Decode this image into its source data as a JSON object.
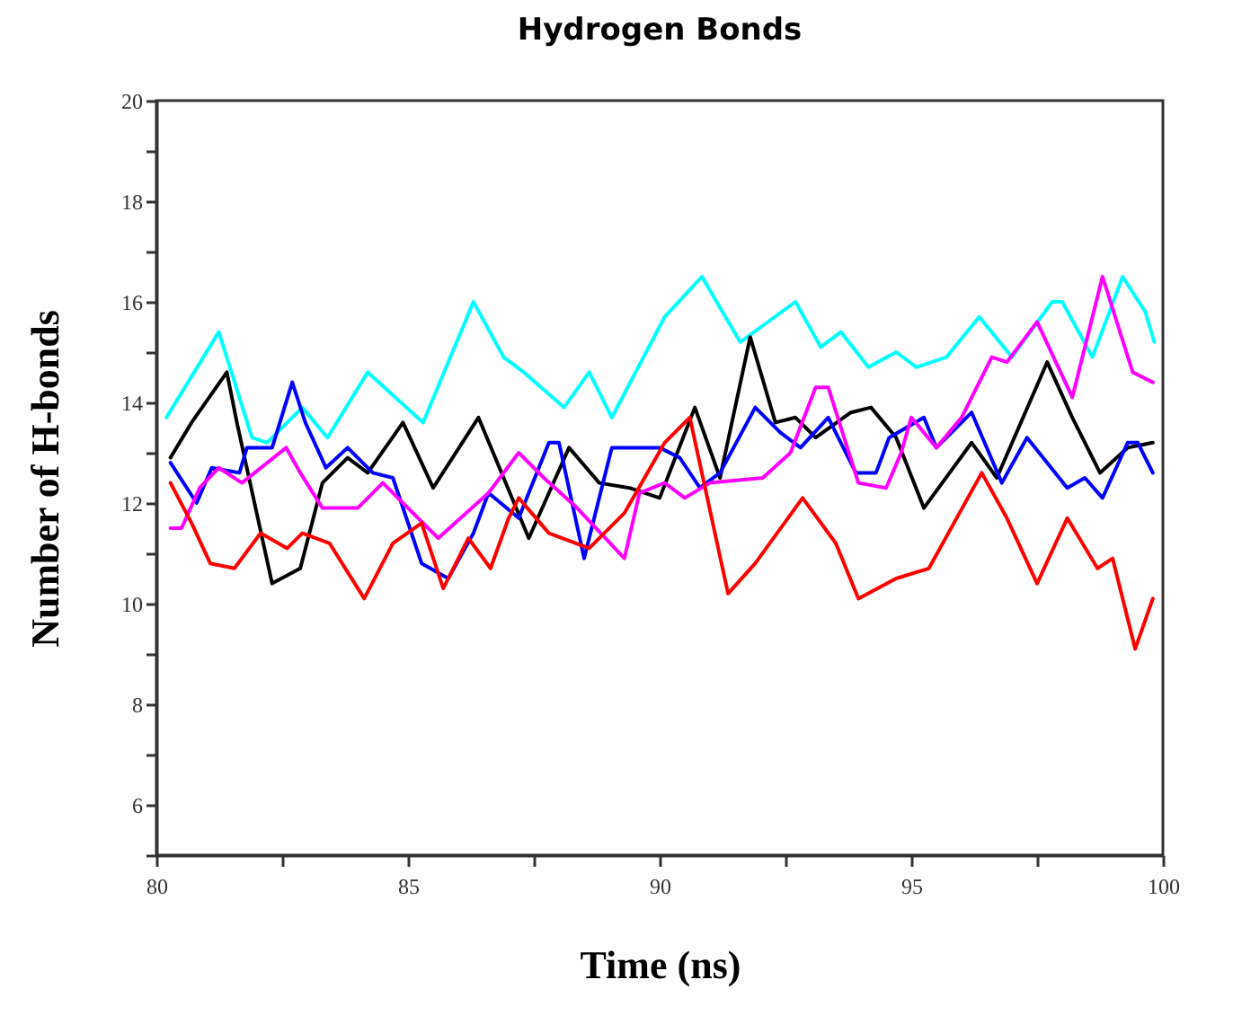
{
  "chart_data": {
    "type": "line",
    "title": "Hydrogen Bonds",
    "xlabel": "Time (ns)",
    "ylabel": "Number of H-bonds",
    "xlim": [
      80,
      100
    ],
    "ylim": [
      5,
      20
    ],
    "xticks": [
      80,
      {
        "value": 82.5,
        "label": null
      },
      85,
      {
        "value": 87.5,
        "label": null
      },
      90,
      {
        "value": 92.5,
        "label": null
      },
      95,
      {
        "value": 97.5,
        "label": null
      },
      100
    ],
    "yticks": [
      {
        "value": 5,
        "label": null
      },
      6,
      {
        "value": 7,
        "label": null
      },
      8,
      {
        "value": 9,
        "label": null
      },
      10,
      {
        "value": 11,
        "label": null
      },
      12,
      {
        "value": 13,
        "label": null
      },
      14,
      {
        "value": 15,
        "label": null
      },
      16,
      {
        "value": 17,
        "label": null
      },
      18,
      {
        "value": 19,
        "label": null
      },
      20
    ],
    "grid": false,
    "legend": false,
    "marker": "none",
    "line_style": "solid",
    "series": [
      {
        "color": "#00ffff",
        "x": [
          80.2,
          81.24,
          81.9,
          82.2,
          82.9,
          83.4,
          84.2,
          85.3,
          86.3,
          86.9,
          87.3,
          88.1,
          88.6,
          89.05,
          90.1,
          90.84,
          91.6,
          92.7,
          93.2,
          93.6,
          94.15,
          94.7,
          95.1,
          95.7,
          96.35,
          97.0,
          97.8,
          98.0,
          98.6,
          99.2,
          99.65,
          99.83
        ],
        "values": [
          13.7,
          15.4,
          13.3,
          13.2,
          13.9,
          13.3,
          14.6,
          13.6,
          16.0,
          14.9,
          14.6,
          13.9,
          14.6,
          13.7,
          15.7,
          16.5,
          15.2,
          16.0,
          15.1,
          15.4,
          14.7,
          15.0,
          14.7,
          14.9,
          15.7,
          14.9,
          16.0,
          16.0,
          14.9,
          16.5,
          15.8,
          15.2
        ]
      },
      {
        "color": "#000000",
        "x": [
          80.28,
          80.7,
          81.4,
          81.6,
          82.3,
          82.86,
          83.3,
          83.8,
          84.2,
          84.9,
          85.5,
          86.4,
          86.9,
          87.4,
          88.2,
          88.8,
          89.4,
          90.0,
          90.7,
          91.2,
          91.8,
          92.3,
          92.7,
          93.1,
          93.8,
          94.2,
          94.7,
          95.25,
          96.2,
          96.7,
          97.7,
          98.2,
          98.75,
          99.3,
          99.8
        ],
        "values": [
          12.9,
          13.6,
          14.6,
          13.6,
          10.4,
          10.7,
          12.4,
          12.9,
          12.6,
          13.6,
          12.3,
          13.7,
          12.5,
          11.3,
          13.1,
          12.4,
          12.3,
          12.1,
          13.9,
          12.5,
          15.3,
          13.6,
          13.7,
          13.3,
          13.8,
          13.9,
          13.3,
          11.9,
          13.2,
          12.5,
          14.8,
          13.7,
          12.6,
          13.1,
          13.2
        ]
      },
      {
        "color": "#0000ff",
        "x": [
          80.28,
          80.8,
          81.1,
          81.65,
          81.8,
          82.3,
          82.7,
          82.96,
          83.37,
          83.8,
          84.3,
          84.7,
          85.27,
          85.8,
          86.3,
          86.6,
          87.2,
          87.8,
          88.0,
          88.5,
          89.05,
          90.0,
          90.4,
          90.8,
          91.2,
          91.9,
          92.4,
          92.8,
          93.35,
          93.9,
          94.3,
          94.56,
          95.25,
          95.5,
          96.2,
          96.8,
          97.3,
          98.1,
          98.45,
          98.8,
          99.3,
          99.5,
          99.8
        ],
        "values": [
          12.8,
          12.0,
          12.7,
          12.6,
          13.1,
          13.1,
          14.4,
          13.6,
          12.7,
          13.1,
          12.6,
          12.5,
          10.8,
          10.5,
          11.4,
          12.2,
          11.7,
          13.2,
          13.2,
          10.9,
          13.1,
          13.1,
          12.9,
          12.3,
          12.6,
          13.9,
          13.4,
          13.1,
          13.7,
          12.6,
          12.6,
          13.3,
          13.7,
          13.1,
          13.8,
          12.4,
          13.3,
          12.3,
          12.5,
          12.1,
          13.2,
          13.2,
          12.6
        ]
      },
      {
        "color": "#ff00ff",
        "x": [
          80.28,
          80.5,
          80.86,
          81.24,
          81.7,
          82.58,
          82.86,
          83.3,
          84.0,
          84.5,
          85.0,
          85.6,
          86.6,
          87.2,
          87.7,
          88.36,
          89.3,
          89.6,
          90.1,
          90.5,
          91.0,
          92.05,
          92.6,
          93.1,
          93.35,
          93.95,
          94.5,
          94.8,
          95.0,
          95.5,
          96.0,
          96.6,
          96.9,
          97.5,
          98.2,
          98.8,
          99.4,
          99.8
        ],
        "values": [
          11.5,
          11.5,
          12.3,
          12.7,
          12.4,
          13.1,
          12.6,
          11.9,
          11.9,
          12.4,
          11.9,
          11.3,
          12.2,
          13.0,
          12.5,
          11.9,
          10.9,
          12.2,
          12.4,
          12.1,
          12.4,
          12.5,
          13.0,
          14.3,
          14.3,
          12.4,
          12.3,
          13.0,
          13.7,
          13.1,
          13.7,
          14.9,
          14.8,
          15.6,
          14.1,
          16.5,
          14.6,
          14.4
        ]
      },
      {
        "color": "#ff0000",
        "x": [
          80.28,
          80.7,
          81.07,
          81.55,
          82.07,
          82.6,
          82.9,
          83.44,
          84.13,
          84.7,
          85.27,
          85.7,
          86.2,
          86.64,
          87.0,
          87.2,
          87.8,
          88.6,
          89.3,
          90.1,
          90.6,
          91.36,
          91.9,
          92.84,
          93.5,
          93.95,
          94.7,
          95.35,
          96.4,
          96.9,
          97.5,
          98.1,
          98.7,
          99.0,
          99.45,
          99.8
        ],
        "values": [
          12.4,
          11.6,
          10.8,
          10.7,
          11.4,
          11.1,
          11.4,
          11.2,
          10.1,
          11.2,
          11.6,
          10.3,
          11.3,
          10.7,
          11.7,
          12.1,
          11.4,
          11.1,
          11.8,
          13.2,
          13.7,
          10.2,
          10.8,
          12.1,
          11.2,
          10.1,
          10.5,
          10.7,
          12.6,
          11.7,
          10.4,
          11.7,
          10.7,
          10.9,
          9.1,
          10.1
        ]
      }
    ]
  }
}
